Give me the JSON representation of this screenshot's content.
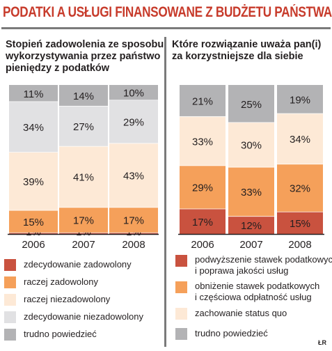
{
  "headline": "PODATKI A USŁUGI FINANSOWANE Z BUDŻETU PAŃSTWA",
  "credit": "ŁR",
  "colors": {
    "headline": "#c73b2b",
    "dark_red": "#c9523f",
    "orange": "#f5a05a",
    "cream": "#fde9d6",
    "light_gray": "#e1e1e3",
    "gray": "#b3b3b5"
  },
  "chart_data": [
    {
      "type": "bar",
      "stacked": true,
      "title_lines": [
        "Stopień zadowolenia ze sposobu",
        "wykorzystywania przez państwo",
        "pieniędzy z podatków"
      ],
      "categories": [
        "2006",
        "2007",
        "2008"
      ],
      "ylim": [
        0,
        100
      ],
      "series": [
        {
          "name": "zdecydowanie zadowolony",
          "color": "#c9523f",
          "values": [
            1,
            1,
            1
          ]
        },
        {
          "name": "raczej zadowolony",
          "color": "#f5a05a",
          "values": [
            15,
            17,
            17
          ]
        },
        {
          "name": "raczej niezadowolony",
          "color": "#fde9d6",
          "values": [
            39,
            41,
            43
          ]
        },
        {
          "name": "zdecydowanie niezadowolony",
          "color": "#e1e1e3",
          "values": [
            34,
            27,
            29
          ]
        },
        {
          "name": "trudno powiedzieć",
          "color": "#b3b3b5",
          "values": [
            11,
            14,
            10
          ]
        }
      ]
    },
    {
      "type": "bar",
      "stacked": true,
      "title_lines": [
        "Które rozwiązanie uważa pan(i)",
        "za korzystniejsze dla siebie"
      ],
      "categories": [
        "2006",
        "2007",
        "2008"
      ],
      "ylim": [
        0,
        100
      ],
      "series": [
        {
          "name": "podwyższenie stawek podatkowych i poprawa jakości usług",
          "legend_lines": [
            "podwyższenie stawek podatkowych",
            "i poprawa jakości usług"
          ],
          "color": "#c9523f",
          "values": [
            17,
            12,
            15
          ]
        },
        {
          "name": "obniżenie stawek podatkowych i częściowa odpłatność usług",
          "legend_lines": [
            "obniżenie stawek podatkowych",
            "i częściowa odpłatność usług"
          ],
          "color": "#f5a05a",
          "values": [
            29,
            33,
            32
          ]
        },
        {
          "name": "zachowanie status quo",
          "legend_lines": [
            "zachowanie status quo"
          ],
          "color": "#fde9d6",
          "values": [
            33,
            30,
            34
          ]
        },
        {
          "name": "trudno powiedzieć",
          "legend_lines": [
            "trudno powiedzieć"
          ],
          "color": "#b3b3b5",
          "values": [
            21,
            25,
            19
          ]
        }
      ]
    }
  ]
}
